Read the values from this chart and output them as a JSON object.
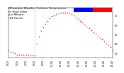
{
  "title_line1": "Milwaukee Weather Outdoor Temperature",
  "title_line2": "vs Heat Index",
  "title_line3": "per Minute",
  "title_line4": "(24 Hours)",
  "bg_color": "#ffffff",
  "plot_bg": "#ffffff",
  "line_color": "#ff0000",
  "legend_blue": "#0000ff",
  "legend_red": "#ff0000",
  "ylim": [
    25,
    78
  ],
  "yticks": [
    30,
    40,
    50,
    60,
    70
  ],
  "xlim": [
    0,
    1440
  ],
  "vline_x": 360,
  "vline_color": "#aaaaaa",
  "x_data": [
    0,
    30,
    60,
    90,
    120,
    150,
    180,
    210,
    240,
    270,
    300,
    330,
    360,
    390,
    420,
    450,
    480,
    510,
    540,
    570,
    600,
    630,
    660,
    690,
    720,
    750,
    780,
    810,
    840,
    870,
    900,
    930,
    960,
    990,
    1020,
    1050,
    1080,
    1110,
    1140,
    1170,
    1200,
    1230,
    1260,
    1290,
    1320,
    1350,
    1380,
    1410,
    1440
  ],
  "y_data": [
    32,
    31,
    30,
    29,
    28,
    28,
    28,
    28,
    28,
    27,
    27,
    27,
    27,
    40,
    47,
    53,
    57,
    61,
    64,
    67,
    69,
    70,
    71,
    72,
    73,
    73,
    73,
    73,
    72,
    71,
    70,
    68,
    66,
    64,
    62,
    60,
    58,
    56,
    54,
    52,
    50,
    48,
    46,
    44,
    42,
    40,
    38,
    36,
    33
  ],
  "marker_size": 1.2,
  "font_size_title": 2.8,
  "font_size_tick": 2.5,
  "xtick_positions": [
    0,
    120,
    240,
    360,
    480,
    600,
    720,
    840,
    960,
    1080,
    1200,
    1320,
    1440
  ],
  "xtick_labels": [
    "0:00",
    "2:00",
    "4:00",
    "6:00",
    "8:00",
    "10:00",
    "12:00",
    "14:00",
    "16:00",
    "18:00",
    "20:00",
    "22:00",
    "24:00"
  ]
}
